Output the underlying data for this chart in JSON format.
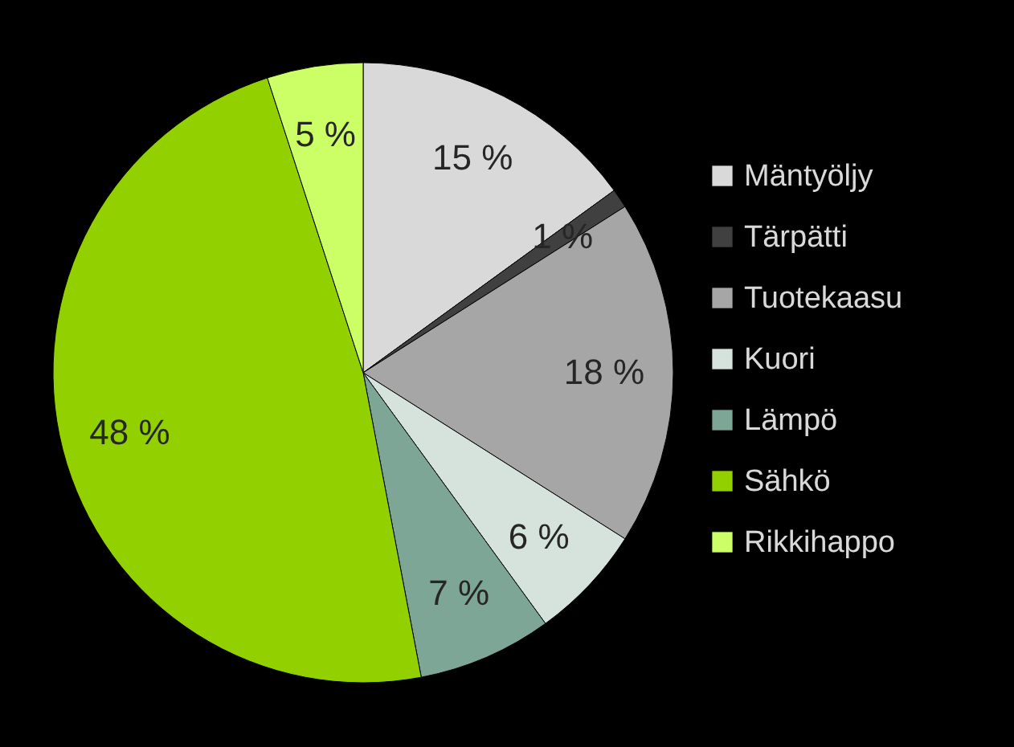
{
  "chart_data": {
    "type": "pie",
    "categories": [
      "Mäntyöljy",
      "Tärpätti",
      "Tuotekaasu",
      "Kuori",
      "Lämpö",
      "Sähkö",
      "Rikkihappo"
    ],
    "values": [
      15,
      1,
      18,
      6,
      7,
      48,
      5
    ],
    "value_labels": [
      "15 %",
      "1 %",
      "18 %",
      "6 %",
      "7 %",
      "48 %",
      "5 %"
    ],
    "colors": [
      "#d9d9d9",
      "#404040",
      "#a6a6a6",
      "#d6e3dd",
      "#7da697",
      "#92d000",
      "#ccff66"
    ],
    "legend": "right"
  }
}
